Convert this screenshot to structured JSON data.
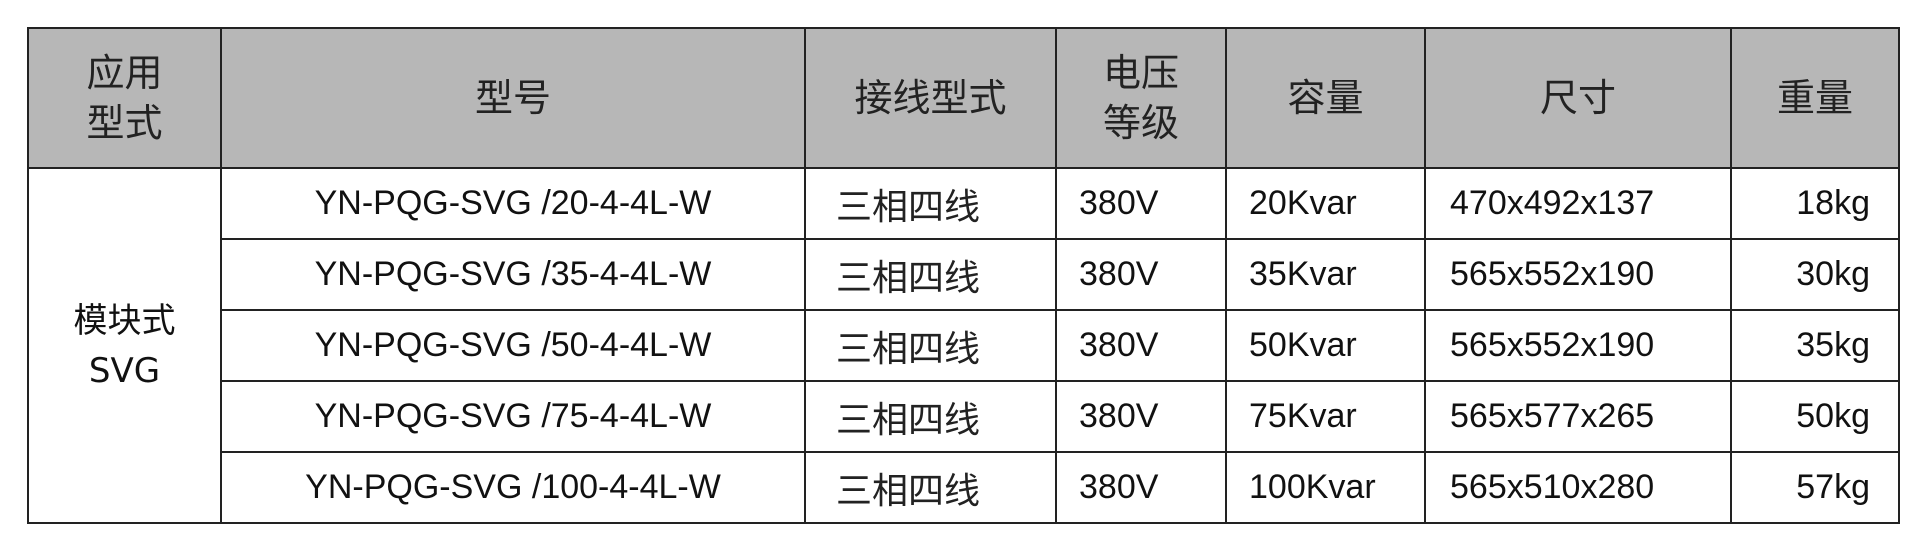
{
  "table": {
    "header_bg": "#b7b7b7",
    "headers": {
      "type_line1": "应用",
      "type_line2": "型式",
      "model": "型号",
      "wiring": "接线型式",
      "voltage_line1": "电压",
      "voltage_line2": "等级",
      "capacity": "容量",
      "size": "尺寸",
      "weight": "重量"
    },
    "group": {
      "line1": "模块式",
      "line2": "SVG"
    },
    "rows": [
      {
        "model": "YN-PQG-SVG /20-4-4L-W",
        "wiring": "三相四线",
        "voltage": "380V",
        "capacity": "20Kvar",
        "size": "470x492x137",
        "weight": "18kg"
      },
      {
        "model": "YN-PQG-SVG /35-4-4L-W",
        "wiring": "三相四线",
        "voltage": "380V",
        "capacity": "35Kvar",
        "size": "565x552x190",
        "weight": "30kg"
      },
      {
        "model": "YN-PQG-SVG /50-4-4L-W",
        "wiring": "三相四线",
        "voltage": "380V",
        "capacity": "50Kvar",
        "size": "565x552x190",
        "weight": "35kg"
      },
      {
        "model": "YN-PQG-SVG /75-4-4L-W",
        "wiring": "三相四线",
        "voltage": "380V",
        "capacity": "75Kvar",
        "size": "565x577x265",
        "weight": "50kg"
      },
      {
        "model": "YN-PQG-SVG /100-4-4L-W",
        "wiring": "三相四线",
        "voltage": "380V",
        "capacity": "100Kvar",
        "size": "565x510x280",
        "weight": "57kg"
      }
    ]
  }
}
